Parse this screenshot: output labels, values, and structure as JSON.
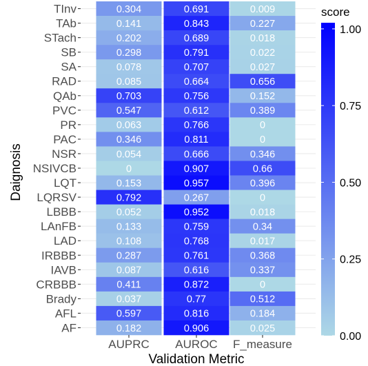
{
  "chart_data": {
    "type": "heatmap",
    "title": "",
    "xlabel": "Validation Metric",
    "ylabel": "Daignosis",
    "x_categories": [
      "AUPRC",
      "AUROC",
      "F_measure"
    ],
    "y_categories": [
      "TInv",
      "TAb",
      "STach",
      "SB",
      "SA",
      "RAD",
      "QAb",
      "PVC",
      "PR",
      "PAC",
      "NSR",
      "NSIVCB",
      "LQT",
      "LQRSV",
      "LBBB",
      "LAnFB",
      "LAD",
      "IRBBB",
      "IAVB",
      "CRBBB",
      "Brady",
      "AFL",
      "AF"
    ],
    "values": [
      [
        0.304,
        0.691,
        0.009
      ],
      [
        0.141,
        0.843,
        0.227
      ],
      [
        0.202,
        0.689,
        0.018
      ],
      [
        0.298,
        0.791,
        0.022
      ],
      [
        0.078,
        0.707,
        0.027
      ],
      [
        0.085,
        0.664,
        0.656
      ],
      [
        0.703,
        0.756,
        0.152
      ],
      [
        0.547,
        0.612,
        0.389
      ],
      [
        0.063,
        0.766,
        0
      ],
      [
        0.346,
        0.811,
        0
      ],
      [
        0.054,
        0.666,
        0.346
      ],
      [
        0,
        0.907,
        0.66
      ],
      [
        0.153,
        0.957,
        0.396
      ],
      [
        0.792,
        0.267,
        0
      ],
      [
        0.052,
        0.952,
        0.018
      ],
      [
        0.133,
        0.759,
        0.34
      ],
      [
        0.108,
        0.768,
        0.017
      ],
      [
        0.287,
        0.761,
        0.368
      ],
      [
        0.087,
        0.616,
        0.337
      ],
      [
        0.411,
        0.872,
        0
      ],
      [
        0.037,
        0.77,
        0.512
      ],
      [
        0.597,
        0.816,
        0.184
      ],
      [
        0.182,
        0.906,
        0.025
      ]
    ],
    "cell_labels": [
      [
        "0.304",
        "0.691",
        "0.009"
      ],
      [
        "0.141",
        "0.843",
        "0.227"
      ],
      [
        "0.202",
        "0.689",
        "0.018"
      ],
      [
        "0.298",
        "0.791",
        "0.022"
      ],
      [
        "0.078",
        "0.707",
        "0.027"
      ],
      [
        "0.085",
        "0.664",
        "0.656"
      ],
      [
        "0.703",
        "0.756",
        "0.152"
      ],
      [
        "0.547",
        "0.612",
        "0.389"
      ],
      [
        "0.063",
        "0.766",
        "0"
      ],
      [
        "0.346",
        "0.811",
        "0"
      ],
      [
        "0.054",
        "0.666",
        "0.346"
      ],
      [
        "0",
        "0.907",
        "0.66"
      ],
      [
        "0.153",
        "0.957",
        "0.396"
      ],
      [
        "0.792",
        "0.267",
        "0"
      ],
      [
        "0.052",
        "0.952",
        "0.018"
      ],
      [
        "0.133",
        "0.759",
        "0.34"
      ],
      [
        "0.108",
        "0.768",
        "0.017"
      ],
      [
        "0.287",
        "0.761",
        "0.368"
      ],
      [
        "0.087",
        "0.616",
        "0.337"
      ],
      [
        "0.411",
        "0.872",
        "0"
      ],
      [
        "0.037",
        "0.77",
        "0.512"
      ],
      [
        "0.597",
        "0.816",
        "0.184"
      ],
      [
        "0.182",
        "0.906",
        "0.025"
      ]
    ],
    "colorbar": {
      "title": "score",
      "range": [
        0,
        1.02
      ],
      "ticks": [
        0,
        0.25,
        0.5,
        0.75,
        1
      ],
      "tick_labels": [
        "0.00",
        "0.25",
        "0.50",
        "0.75",
        "1.00"
      ],
      "low_color": "#add8e6",
      "high_color": "#0000ff"
    },
    "grid": true,
    "legend_position": "right"
  }
}
